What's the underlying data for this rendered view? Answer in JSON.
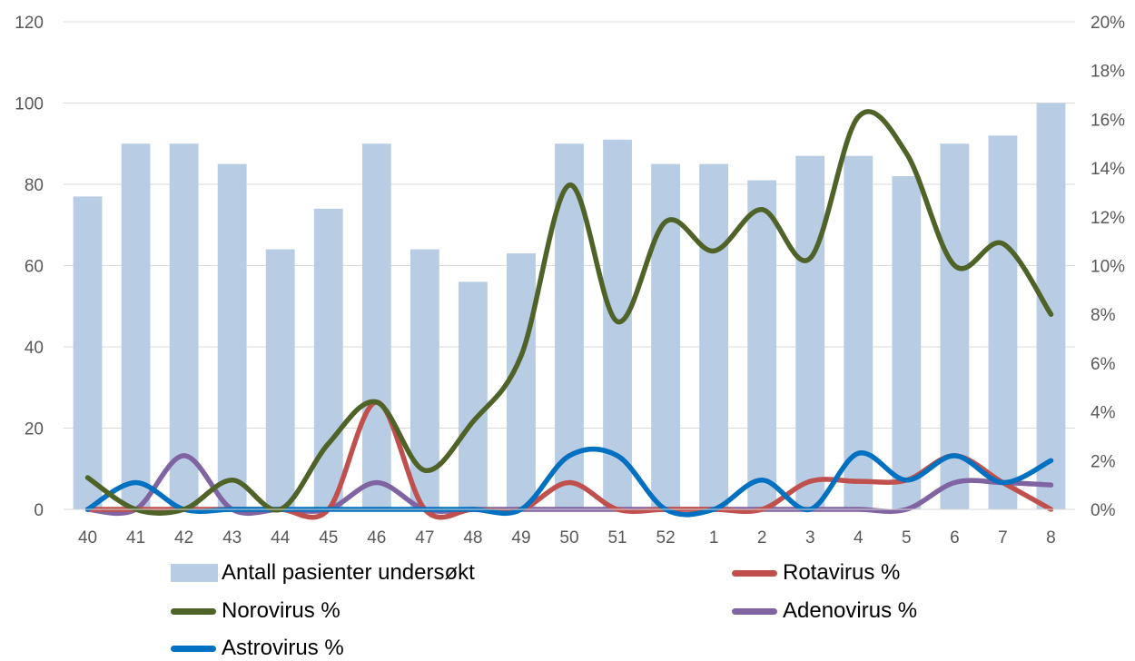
{
  "chart_data": {
    "type": "bar",
    "categories": [
      "40",
      "41",
      "42",
      "43",
      "44",
      "45",
      "46",
      "47",
      "48",
      "49",
      "50",
      "51",
      "52",
      "1",
      "2",
      "3",
      "4",
      "5",
      "6",
      "7",
      "8"
    ],
    "bar_series": {
      "name": "Antall pasienter undersøkt",
      "color": "#b8cce4",
      "values": [
        77,
        90,
        90,
        85,
        64,
        74,
        90,
        64,
        56,
        63,
        90,
        91,
        85,
        85,
        81,
        87,
        87,
        82,
        90,
        92,
        100
      ]
    },
    "line_series": [
      {
        "name": "Rotavirus %",
        "color": "#c0504d",
        "values": [
          0,
          0,
          0,
          0,
          0,
          0,
          4.4,
          0,
          0,
          0,
          1.1,
          0,
          0,
          0,
          0,
          1.15,
          1.15,
          1.2,
          2.2,
          1.1,
          0
        ]
      },
      {
        "name": "Norovirus %",
        "color": "#4f6228",
        "values": [
          1.3,
          0,
          0,
          1.2,
          0,
          2.7,
          4.4,
          1.6,
          3.6,
          6.3,
          13.3,
          7.7,
          11.8,
          10.6,
          12.3,
          10.3,
          16.1,
          14.6,
          10.0,
          10.9,
          8.0
        ]
      },
      {
        "name": "Adenovirus %",
        "color": "#8064a2",
        "values": [
          0,
          0,
          2.2,
          0,
          0,
          0,
          1.1,
          0,
          0,
          0,
          0,
          0,
          0,
          0,
          0,
          0,
          0,
          0,
          1.1,
          1.1,
          1.0
        ]
      },
      {
        "name": "Astrovirus %",
        "color": "#0070c0",
        "values": [
          0,
          1.1,
          0,
          0,
          0,
          0,
          0,
          0,
          0,
          0,
          2.2,
          2.2,
          0,
          0,
          1.2,
          0,
          2.3,
          1.2,
          2.2,
          1.1,
          2.0
        ]
      }
    ],
    "y_left": {
      "min": 0,
      "max": 120,
      "ticks": [
        "0",
        "20",
        "40",
        "60",
        "80",
        "100",
        "120"
      ]
    },
    "y_right": {
      "min": 0,
      "max": 20,
      "ticks": [
        "0%",
        "2%",
        "4%",
        "6%",
        "8%",
        "10%",
        "12%",
        "14%",
        "16%",
        "18%",
        "20%"
      ]
    },
    "grid": true,
    "legend_position": "bottom",
    "title": "",
    "xlabel": "",
    "ylabel": ""
  }
}
